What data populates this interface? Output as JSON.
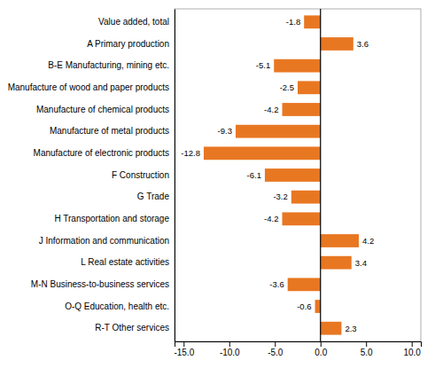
{
  "chart_data": {
    "type": "bar",
    "orientation": "horizontal",
    "categories": [
      "R-T Other services",
      "O-Q Education, health etc.",
      "M-N Business-to-business services",
      "L Real estate activities",
      "J Information and communication",
      "H Transportation and storage",
      "G Trade",
      "F Construction",
      "Manufacture of electronic products",
      "Manufacture of metal products",
      "Manufacture of chemical products",
      "Manufacture of wood and paper products",
      "B-E Manufacturing, mining etc.",
      "A Primary production",
      "Value added, total"
    ],
    "values": [
      2.3,
      -0.6,
      -3.6,
      3.4,
      4.2,
      -4.2,
      -3.2,
      -6.1,
      -12.8,
      -9.3,
      -4.2,
      -2.5,
      -5.1,
      3.6,
      -1.8
    ],
    "color": "#E87722",
    "xlim": [
      -16.0,
      11.0
    ],
    "xticks": [
      {
        "value": -15.0,
        "label": "-15.0"
      },
      {
        "value": -10.0,
        "label": "-10.0"
      },
      {
        "value": -5.0,
        "label": "-5.0"
      },
      {
        "value": 0.0,
        "label": "0.0"
      },
      {
        "value": 5.0,
        "label": "5.0"
      },
      {
        "value": 10.0,
        "label": "10.0"
      }
    ],
    "data_labels": true,
    "grid": false
  }
}
